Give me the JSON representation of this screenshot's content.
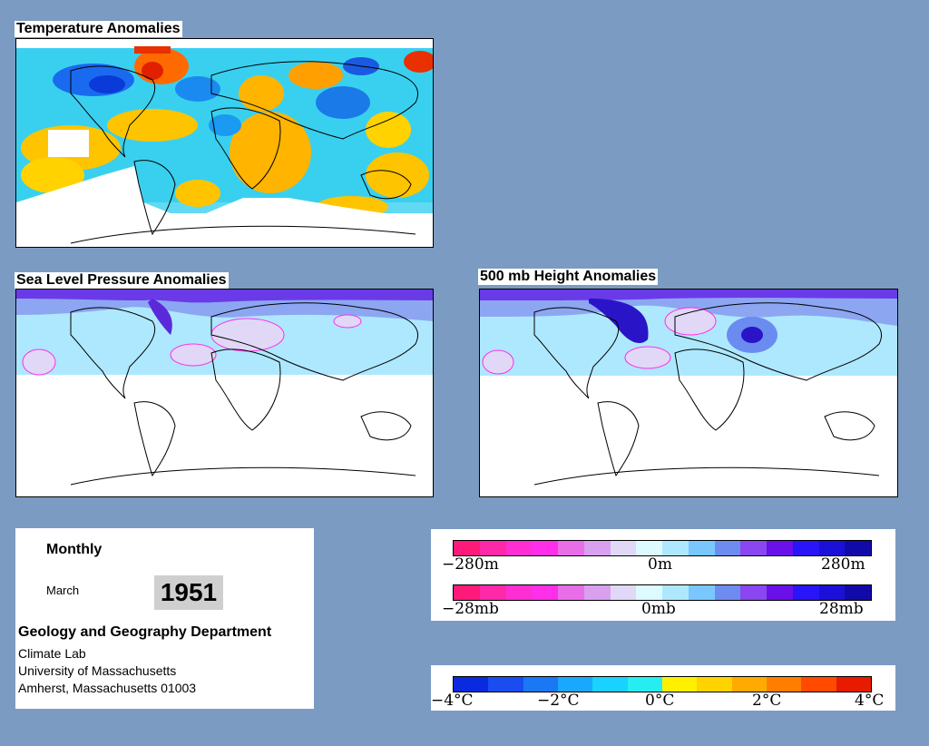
{
  "panels": {
    "temperature": {
      "title": "Temperature Anomalies"
    },
    "slp": {
      "title": "Sea Level Pressure Anomalies"
    },
    "height": {
      "title": "500 mb Height Anomalies"
    }
  },
  "info": {
    "period": "Monthly",
    "month": "March",
    "year": "1951",
    "department": "Geology and Geography Department",
    "lab": "Climate Lab",
    "university": "University of Massachusetts",
    "address": "Amherst, Massachusetts 01003"
  },
  "legend_pressure": {
    "colors": [
      "#ff1a7a",
      "#ff28a8",
      "#ff2ed2",
      "#ff2ee8",
      "#e86ee8",
      "#d8a0ee",
      "#e0d8f6",
      "#dcfaff",
      "#aee8ff",
      "#78c8ff",
      "#6e8cf0",
      "#8a46f0",
      "#6a10e8",
      "#2a14f8",
      "#1a10d8",
      "#120aa8"
    ],
    "height_labels": [
      "−280m",
      "0m",
      "280m"
    ],
    "slp_labels": [
      "−28mb",
      "0mb",
      "28mb"
    ]
  },
  "legend_temperature": {
    "colors": [
      "#0a2ae0",
      "#1a4cf0",
      "#1a78f5",
      "#1aa8ff",
      "#1ad2ff",
      "#26eef0",
      "#fff000",
      "#ffd200",
      "#ffaa00",
      "#ff7e00",
      "#ff4a00",
      "#e81a00"
    ],
    "labels": [
      "−4°C",
      "−2°C",
      "0°C",
      "2°C",
      "4°C"
    ]
  }
}
